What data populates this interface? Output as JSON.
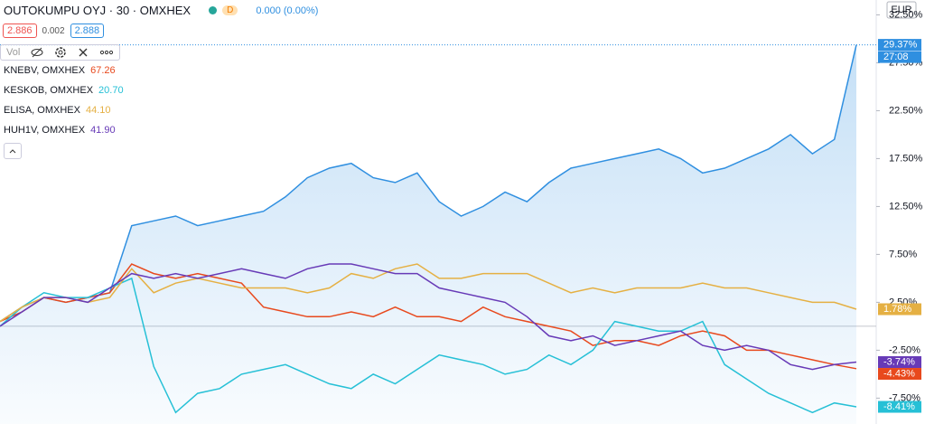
{
  "chart_data": {
    "type": "line",
    "title": "OUTOKUMPU OYJ · 30 · OMXHEX",
    "interval_badge": "D",
    "change": "0.000 (0.00%)",
    "bid": "2.886",
    "spread": "0.002",
    "ask": "2.888",
    "volume_label": "Vol",
    "currency": "EUR",
    "countdown": "27:08",
    "ylim": [
      -10.2,
      34.05
    ],
    "yticks": [
      {
        "value": 32.5,
        "label": "32.50%"
      },
      {
        "value": 27.5,
        "label": "27.50%"
      },
      {
        "value": 22.5,
        "label": "22.50%"
      },
      {
        "value": 17.5,
        "label": "17.50%"
      },
      {
        "value": 12.5,
        "label": "12.50%"
      },
      {
        "value": 7.5,
        "label": "7.50%"
      },
      {
        "value": 2.5,
        "label": "2.50%"
      },
      {
        "value": -2.5,
        "label": "-2.50%"
      },
      {
        "value": -7.5,
        "label": "-7.50%"
      }
    ],
    "series": [
      {
        "color": "#2f8fe0",
        "main": true,
        "last_label": "29.37%",
        "values": [
          0.5,
          2,
          3,
          2.5,
          3,
          3.5,
          10.5,
          11,
          11.5,
          10.5,
          11,
          11.5,
          12,
          13.5,
          15.5,
          16.5,
          17,
          15.5,
          15,
          16,
          13,
          11.5,
          12.5,
          14,
          13,
          15,
          16.5,
          17,
          17.5,
          18,
          18.5,
          17.5,
          16,
          16.5,
          17.5,
          18.5,
          20,
          18,
          19.5,
          29.37
        ]
      },
      {
        "name": "KNEBV, OMXHEX",
        "legend_value": "67.26",
        "color": "#e8491d",
        "last_label": "-4.43%",
        "values": [
          0.5,
          1.5,
          3,
          2.5,
          3,
          3.5,
          6.5,
          5.5,
          5,
          5.5,
          5,
          4.5,
          2,
          1.5,
          1,
          1,
          1.5,
          1,
          2,
          1,
          1,
          0.5,
          2,
          1,
          0.5,
          0,
          -0.5,
          -2,
          -1.5,
          -1.5,
          -2,
          -1,
          -0.5,
          -1,
          -2.5,
          -2.5,
          -3,
          -3.5,
          -4,
          -4.43
        ]
      },
      {
        "name": "KESKOB, OMXHEX",
        "legend_value": "20.70",
        "color": "#26c0d6",
        "last_label": "-8.41%",
        "values": [
          0,
          2,
          3.5,
          3,
          3,
          4,
          5,
          -4.2,
          -9,
          -7,
          -6.5,
          -5,
          -4.5,
          -4,
          -5,
          -6,
          -6.5,
          -5,
          -6,
          -4.5,
          -3,
          -3.5,
          -4,
          -5,
          -4.5,
          -3,
          -4,
          -2.5,
          0.5,
          0,
          -0.5,
          -0.5,
          0.5,
          -4,
          -5.5,
          -7,
          -8,
          -9,
          -8,
          -8.41
        ]
      },
      {
        "name": "ELISA, OMXHEX",
        "legend_value": "44.10",
        "color": "#e5b043",
        "last_label": "1.78%",
        "values": [
          0.5,
          2,
          3,
          3,
          2.5,
          3,
          6,
          3.5,
          4.5,
          5,
          4.5,
          4,
          4,
          4,
          3.5,
          4,
          5.5,
          5,
          6,
          6.5,
          5,
          5,
          5.5,
          5.5,
          5.5,
          4.5,
          3.5,
          4,
          3.5,
          4,
          4,
          4,
          4.5,
          4,
          4,
          3.5,
          3,
          2.5,
          2.5,
          1.78
        ]
      },
      {
        "name": "HUH1V, OMXHEX",
        "legend_value": "41.90",
        "color": "#673ab7",
        "last_label": "-3.74%",
        "values": [
          0,
          1.5,
          3,
          3,
          2.5,
          4,
          5.5,
          5,
          5.5,
          5,
          5.5,
          6,
          5.5,
          5,
          6,
          6.5,
          6.5,
          6,
          5.5,
          5.5,
          4,
          3.5,
          3,
          2.5,
          1,
          -1,
          -1.5,
          -1,
          -2,
          -1.5,
          -1,
          -0.5,
          -2,
          -2.5,
          -2,
          -2.5,
          -4,
          -4.5,
          -4,
          -3.74
        ]
      }
    ]
  }
}
